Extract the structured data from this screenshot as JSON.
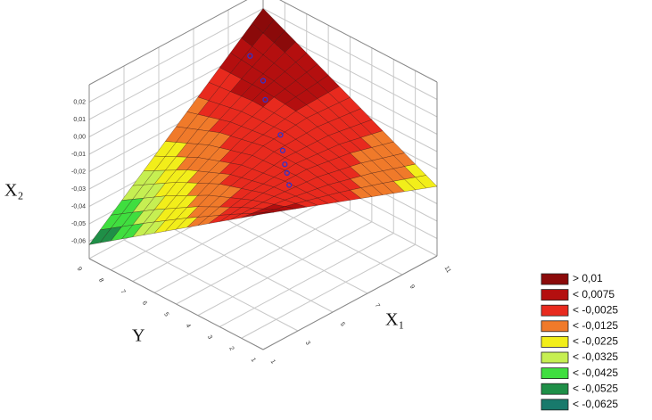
{
  "chart_data": {
    "type": "surface",
    "xlabel": "X₁",
    "ylabel": "Y",
    "zlabel": "X₂",
    "xlim": [
      1,
      11
    ],
    "ylim": [
      1,
      9
    ],
    "zlim": [
      -0.07,
      0.03
    ],
    "xticks": [
      1,
      3,
      5,
      7,
      9,
      11
    ],
    "yticks": [
      1,
      2,
      3,
      4,
      5,
      6,
      7,
      8,
      9
    ],
    "zticks": [
      {
        "value": -0.06,
        "label": "-0,06"
      },
      {
        "value": -0.05,
        "label": "-0,05"
      },
      {
        "value": -0.04,
        "label": "-0,04"
      },
      {
        "value": -0.03,
        "label": "-0,03"
      },
      {
        "value": -0.02,
        "label": "-0,02"
      },
      {
        "value": -0.01,
        "label": "-0,01"
      },
      {
        "value": 0,
        "label": "0,00"
      },
      {
        "value": 0.01,
        "label": "0,01"
      },
      {
        "value": 0.02,
        "label": "0,02"
      }
    ],
    "surface": {
      "x": [
        1,
        3.5,
        6,
        8.5,
        11
      ],
      "y": [
        1,
        3,
        5,
        7,
        9
      ],
      "z": [
        [
          0.008,
          -0.0015,
          -0.011,
          -0.0205,
          -0.03
        ],
        [
          -0.0095,
          -0.0065,
          -0.0064,
          -0.0105,
          -0.0175
        ],
        [
          -0.027,
          -0.0144,
          -0.006,
          -0.0034,
          -0.005
        ],
        [
          -0.0445,
          -0.0265,
          -0.0114,
          -0.0005,
          0.0075
        ],
        [
          -0.062,
          -0.0415,
          -0.021,
          -0.0005,
          0.02
        ]
      ]
    },
    "points": {
      "color": "#3333cc",
      "x": [
        9,
        8.5,
        8,
        7,
        6.5,
        6,
        5.5,
        5
      ],
      "y": [
        8,
        7,
        6.5,
        5,
        4.5,
        4,
        3.5,
        3
      ],
      "z": [
        0.01,
        0.005,
        0,
        -0.005,
        -0.008,
        -0.01,
        -0.009,
        -0.01
      ]
    },
    "legend": [
      {
        "value": 0.01,
        "label": "> 0,01",
        "color": "#8b0a0a"
      },
      {
        "value": 0.0075,
        "label": "< 0,0075",
        "color": "#b40f0f"
      },
      {
        "value": -0.0025,
        "label": "< -0,0025",
        "color": "#e82a1e"
      },
      {
        "value": -0.0125,
        "label": "< -0,0125",
        "color": "#f07a2a"
      },
      {
        "value": -0.0225,
        "label": "< -0,0225",
        "color": "#f2ee1a"
      },
      {
        "value": -0.0325,
        "label": "< -0,0325",
        "color": "#c6ef52"
      },
      {
        "value": -0.0425,
        "label": "< -0,0425",
        "color": "#3fde3f"
      },
      {
        "value": -0.0525,
        "label": "< -0,0525",
        "color": "#1f8f47"
      },
      {
        "value": -0.0625,
        "label": "< -0,0625",
        "color": "#187a6c"
      }
    ]
  }
}
